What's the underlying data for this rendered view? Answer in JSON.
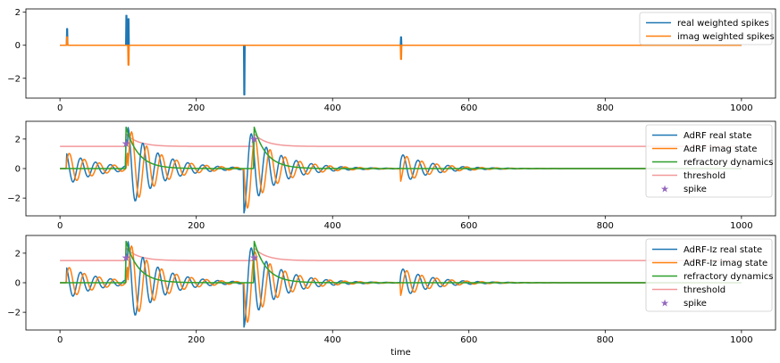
{
  "chart_data": [
    {
      "type": "line",
      "xlim": [
        -50,
        1050
      ],
      "ylim": [
        -3.2,
        2.2
      ],
      "xticks": [
        0,
        200,
        400,
        600,
        800,
        1000
      ],
      "yticks": [
        -2,
        0,
        2
      ],
      "legend_location": "upper right",
      "colors": {
        "real": "#1f77b4",
        "imag": "#ff7f0e"
      },
      "series": [
        {
          "name": "real weighted spikes",
          "color": "#1f77b4",
          "impulses": [
            [
              10,
              1.0
            ],
            [
              97,
              1.8
            ],
            [
              100,
              1.6
            ],
            [
              270,
              -3.0
            ],
            [
              500,
              0.5
            ]
          ]
        },
        {
          "name": "imag weighted spikes",
          "color": "#ff7f0e",
          "impulses": [
            [
              10,
              0.5
            ],
            [
              100,
              -1.2
            ],
            [
              500,
              -0.85
            ]
          ]
        }
      ]
    },
    {
      "type": "line",
      "xlim": [
        -50,
        1050
      ],
      "ylim": [
        -3.2,
        3.2
      ],
      "xticks": [
        0,
        200,
        400,
        600,
        800,
        1000
      ],
      "yticks": [
        -2,
        0,
        2
      ],
      "legend_location": "upper right",
      "series": [
        {
          "name": "AdRF real state",
          "color": "#1f77b4"
        },
        {
          "name": "AdRF imag state",
          "color": "#ff7f0e"
        },
        {
          "name": "refractory dynamics",
          "color": "#2ca02c"
        },
        {
          "name": "threshold",
          "color": "#f2989a",
          "base": 1.5
        },
        {
          "name": "spike",
          "color": "#9467bd",
          "marker": "star",
          "points": [
            [
              97,
              1.7
            ],
            [
              285,
              2.0
            ]
          ]
        }
      ],
      "events": {
        "real_impulses": [
          [
            10,
            1.0
          ],
          [
            97,
            1.8
          ],
          [
            100,
            1.6
          ],
          [
            270,
            -3.0
          ],
          [
            500,
            0.5
          ]
        ],
        "imag_impulses": [
          [
            10,
            0.5
          ],
          [
            100,
            -1.2
          ],
          [
            500,
            -0.85
          ]
        ],
        "spike_times": [
          97,
          285
        ],
        "oscillation_period": 22,
        "decay_tau": 45
      }
    },
    {
      "type": "line",
      "xlim": [
        -50,
        1050
      ],
      "ylim": [
        -3.2,
        3.2
      ],
      "xticks": [
        0,
        200,
        400,
        600,
        800,
        1000
      ],
      "yticks": [
        -2,
        0,
        2
      ],
      "xlabel": "time",
      "legend_location": "upper right",
      "series": [
        {
          "name": "AdRF-Iz real state",
          "color": "#1f77b4"
        },
        {
          "name": "AdRF-Iz imag state",
          "color": "#ff7f0e"
        },
        {
          "name": "refractory dynamics",
          "color": "#2ca02c"
        },
        {
          "name": "threshold",
          "color": "#f2989a",
          "base": 1.5
        },
        {
          "name": "spike",
          "color": "#9467bd",
          "marker": "star",
          "points": [
            [
              97,
              1.7
            ],
            [
              285,
              1.7
            ]
          ]
        }
      ],
      "events": {
        "real_impulses": [
          [
            10,
            1.0
          ],
          [
            97,
            1.8
          ],
          [
            100,
            1.6
          ],
          [
            270,
            -3.0
          ],
          [
            500,
            0.5
          ]
        ],
        "imag_impulses": [
          [
            10,
            0.5
          ],
          [
            100,
            -1.2
          ],
          [
            500,
            -0.85
          ]
        ],
        "spike_times": [
          97,
          285
        ],
        "oscillation_period": 22,
        "decay_tau": 45
      }
    }
  ]
}
